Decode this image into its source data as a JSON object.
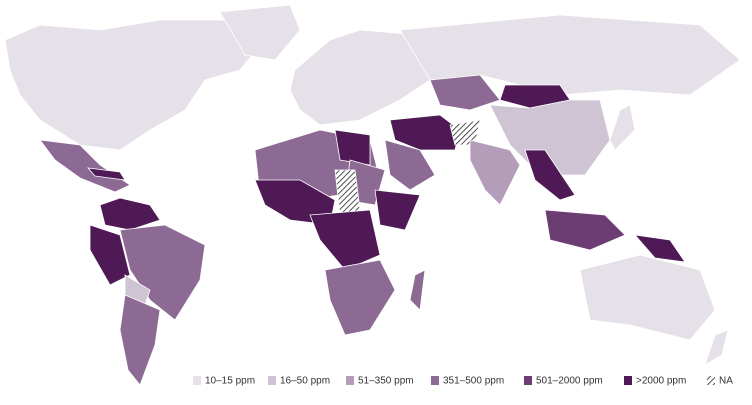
{
  "legend": [
    {
      "label": "10–15 ppm",
      "color": "#e6e0e9"
    },
    {
      "label": "16–50 ppm",
      "color": "#cfc4d4"
    },
    {
      "label": "51–350 ppm",
      "color": "#b39db9"
    },
    {
      "label": "351–500 ppm",
      "color": "#8d6a94"
    },
    {
      "label": "501–2000 ppm",
      "color": "#6c3d72"
    },
    {
      "label": ">2000 ppm",
      "color": "#4e1954"
    },
    {
      "label": "NA",
      "hatch": true
    }
  ]
}
